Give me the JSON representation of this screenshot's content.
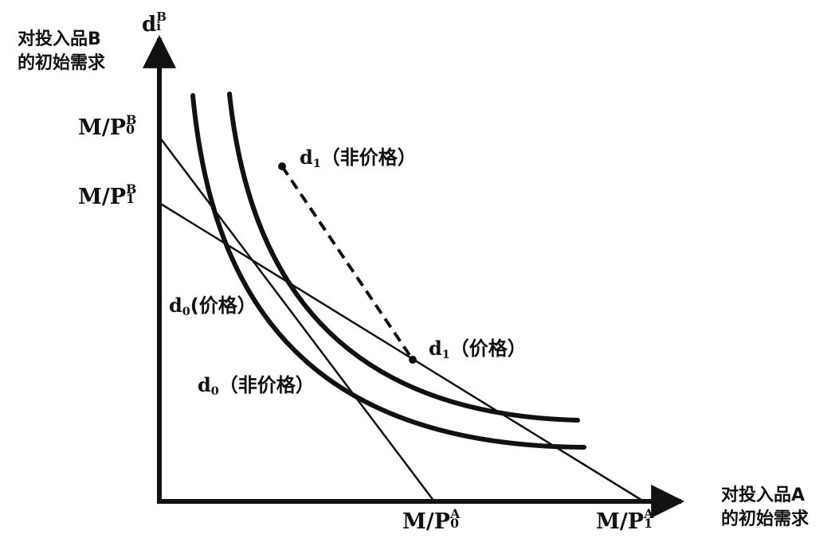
{
  "axes": {
    "y_title_line1": "对投入品B",
    "y_title_line2": "的初始需求",
    "x_title_line1": "对投入品A",
    "x_title_line2": "的初始需求",
    "y_top_base": "d",
    "y_top_sup": "B",
    "y_top_sub": "i"
  },
  "intercepts": {
    "y0_base": "M/P",
    "y0_sup": "B",
    "y0_sub": "0",
    "y1_base": "M/P",
    "y1_sup": "B",
    "y1_sub": "1",
    "x0_base": "M/P",
    "x0_sup": "A",
    "x0_sub": "0",
    "x1_base": "M/P",
    "x1_sup": "A",
    "x1_sub": "1"
  },
  "curve_labels": {
    "d1_nonprice_base": "d",
    "d1_nonprice_sub": "1",
    "d1_nonprice_text": "（非价格）",
    "d0_price_base": "d",
    "d0_price_sub": "0",
    "d0_price_text": "(价格）",
    "d1_price_base": "d",
    "d1_price_sub": "1",
    "d1_price_text": "（价格）",
    "d0_nonprice_base": "d",
    "d0_nonprice_sub": "0",
    "d0_nonprice_text": "（非价格）"
  },
  "colors": {
    "ink": "#111111",
    "background": "#ffffff"
  }
}
